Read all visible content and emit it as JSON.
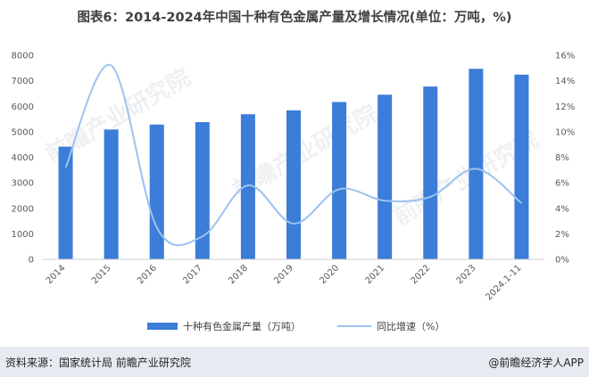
{
  "title": "图表6：2014-2024年中国十种有色金属产量及增长情况(单位：万吨，%)",
  "footer": {
    "source": "资料来源：国家统计局 前瞻产业研究院",
    "brand": "@前瞻经济学人APP"
  },
  "watermark": "前瞻产业研究院",
  "colors": {
    "bar": "#3b7dd8",
    "line": "#9cc2ee"
  },
  "chart_data": {
    "type": "bar",
    "categories": [
      "2014",
      "2015",
      "2016",
      "2017",
      "2018",
      "2019",
      "2020",
      "2021",
      "2022",
      "2023",
      "2024.1-11"
    ],
    "series": [
      {
        "name": "十种有色金属产量（万吨）",
        "type": "bar",
        "axis": "left",
        "values": [
          4417,
          5090,
          5283,
          5378,
          5688,
          5842,
          6168,
          6454,
          6774,
          7470,
          7240
        ]
      },
      {
        "name": "同比增速（%）",
        "type": "line",
        "axis": "right",
        "values": [
          7.2,
          15.2,
          2.5,
          1.8,
          5.8,
          2.8,
          5.5,
          4.6,
          4.9,
          7.1,
          4.4
        ]
      }
    ],
    "y_left": {
      "min": 0,
      "max": 8000,
      "ticks": [
        "0",
        "1000",
        "2000",
        "3000",
        "4000",
        "5000",
        "6000",
        "7000",
        "8000"
      ]
    },
    "y_right": {
      "min": 0,
      "max": 16,
      "ticks": [
        "0%",
        "2%",
        "4%",
        "6%",
        "8%",
        "10%",
        "12%",
        "14%",
        "16%"
      ]
    },
    "grid": false,
    "legend_position": "bottom"
  }
}
